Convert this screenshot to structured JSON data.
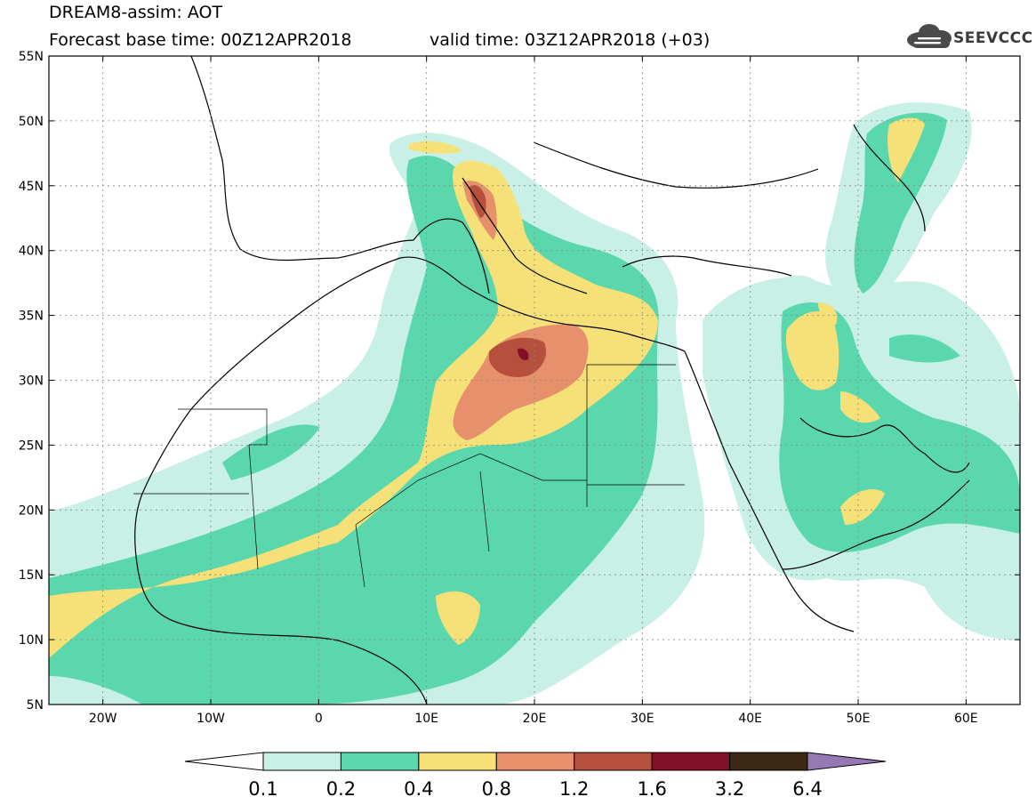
{
  "header": {
    "title": "DREAM8-assim: AOT",
    "base_time": "Forecast base time: 00Z12APR2018",
    "valid_time": "valid time: 03Z12APR2018 (+03)",
    "logo_text": "SEEVCCC"
  },
  "map": {
    "lon_range": [
      -25,
      65
    ],
    "lat_range": [
      5,
      55
    ],
    "lon_ticks": [
      {
        "value": -20,
        "label": "20W"
      },
      {
        "value": -10,
        "label": "10W"
      },
      {
        "value": 0,
        "label": "0"
      },
      {
        "value": 10,
        "label": "10E"
      },
      {
        "value": 20,
        "label": "20E"
      },
      {
        "value": 30,
        "label": "30E"
      },
      {
        "value": 40,
        "label": "40E"
      },
      {
        "value": 50,
        "label": "50E"
      },
      {
        "value": 60,
        "label": "60E"
      }
    ],
    "lat_ticks": [
      {
        "value": 55,
        "label": "55N"
      },
      {
        "value": 50,
        "label": "50N"
      },
      {
        "value": 45,
        "label": "45N"
      },
      {
        "value": 40,
        "label": "40N"
      },
      {
        "value": 35,
        "label": "35N"
      },
      {
        "value": 30,
        "label": "30N"
      },
      {
        "value": 25,
        "label": "25N"
      },
      {
        "value": 20,
        "label": "20N"
      },
      {
        "value": 15,
        "label": "15N"
      },
      {
        "value": 10,
        "label": "10N"
      },
      {
        "value": 5,
        "label": "5N"
      }
    ]
  },
  "colorbar": {
    "labels": [
      "0.1",
      "0.2",
      "0.4",
      "0.8",
      "1.2",
      "1.6",
      "3.2",
      "6.4"
    ],
    "colors": [
      "#ffffff",
      "#c8f0e6",
      "#5ad7ad",
      "#f5e178",
      "#e6916b",
      "#b4503c",
      "#820f28",
      "#3c2814",
      "#9678b4"
    ]
  }
}
